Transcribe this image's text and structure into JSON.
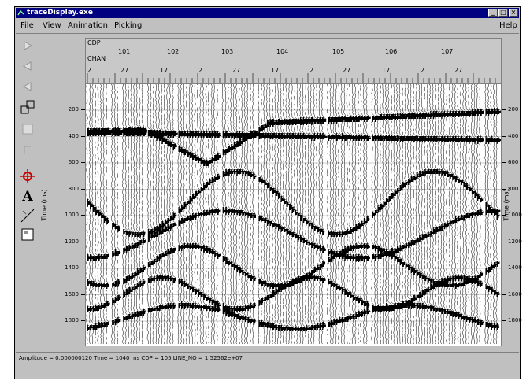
{
  "window": {
    "title": "traceDisplay.exe",
    "controls": [
      "_",
      "□",
      "×"
    ]
  },
  "menubar": {
    "items": [
      "File",
      "View",
      "Animation",
      "Picking"
    ],
    "help": "Help"
  },
  "toolbar": {
    "tools": [
      {
        "icon": "play-right-icon"
      },
      {
        "icon": "play-left-icon"
      },
      {
        "icon": "step-left-icon"
      },
      {
        "icon": "zoom-icon"
      },
      {
        "icon": "pan-icon"
      },
      {
        "icon": "move-icon"
      },
      {
        "icon": "target-icon"
      },
      {
        "icon": "text-icon"
      },
      {
        "icon": "draw-line-icon"
      },
      {
        "icon": "color-box-icon"
      }
    ],
    "text_tool_label": "A"
  },
  "header": {
    "cdp_label": "CDP",
    "chan_label": "CHAN",
    "cdp_values": [
      "101",
      "102",
      "103",
      "104",
      "105",
      "106",
      "107"
    ],
    "chan_values": [
      "2",
      "27",
      "17",
      "2",
      "27",
      "17",
      "2",
      "27",
      "17",
      "2",
      "27"
    ]
  },
  "axes": {
    "left_label": "Time (ms)",
    "right_label": "Time (ms)",
    "ticks": [
      "200",
      "400",
      "600",
      "800",
      "1000",
      "1200",
      "1400",
      "1600",
      "1800"
    ]
  },
  "status": {
    "text": "Amplitude = 0.000000120  Time = 1040 ms  CDP = 105  LINE_NO = 1.52562e+07"
  },
  "colors": {
    "titlebar": "#000080",
    "window": "#c0c0c0",
    "trace": "#000000",
    "canvas": "#ffffff",
    "accent_tool": "#cc0000"
  }
}
